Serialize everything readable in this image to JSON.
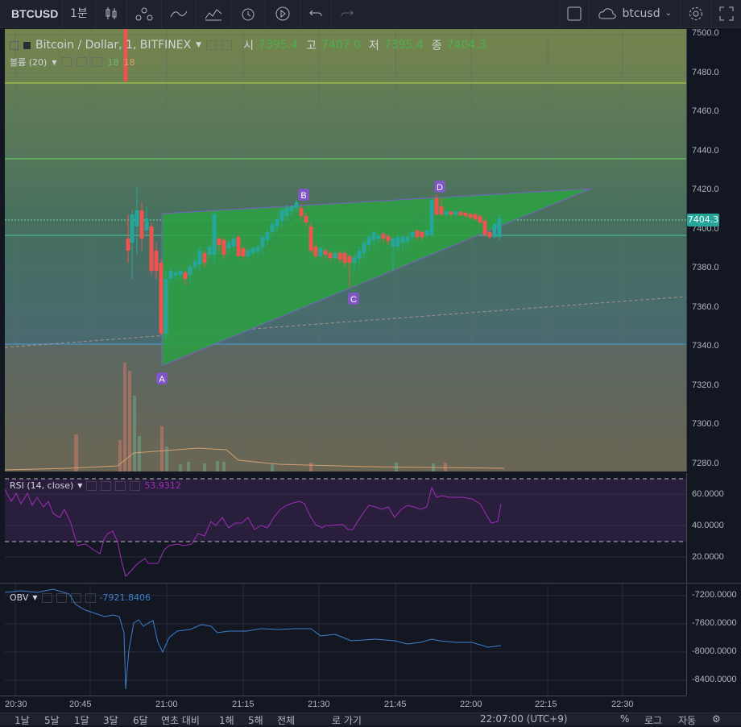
{
  "toolbar": {
    "symbol": "BTCUSD",
    "interval": "1분",
    "cloud_label": "btcusd"
  },
  "legend": {
    "pair": "Bitcoin / Dollar, 1, BITFINEX",
    "open_label": "시",
    "open": "7395.4",
    "high_label": "고",
    "high": "7407.0",
    "low_label": "저",
    "low": "7395.4",
    "close_label": "종",
    "close": "7404.3",
    "volume_title": "볼륨 (20)",
    "volume_val1": "18",
    "volume_val2": "18"
  },
  "price_axis": {
    "labels": [
      "7500.0",
      "7480.0",
      "7460.0",
      "7440.0",
      "7420.0",
      "7400.0",
      "7380.0",
      "7360.0",
      "7340.0",
      "7320.0",
      "7300.0",
      "7280.0"
    ],
    "current": "7404.3"
  },
  "rsi": {
    "title": "RSI (14, close)",
    "value": "53.9312",
    "labels": [
      "60.0000",
      "40.0000",
      "20.0000"
    ]
  },
  "obv": {
    "title": "OBV",
    "value": "-7921.8406",
    "labels": [
      "-7200.0000",
      "-7600.0000",
      "-8000.0000",
      "-8400.0000"
    ]
  },
  "time_axis": [
    "20:30",
    "20:45",
    "21:00",
    "21:15",
    "21:30",
    "21:45",
    "22:00",
    "22:15",
    "22:30"
  ],
  "pattern_points": [
    "A",
    "B",
    "C",
    "D"
  ],
  "bottom": {
    "ranges": [
      "1날",
      "5날",
      "1달",
      "3달",
      "6달",
      "연초 대비",
      "1해",
      "5해",
      "전체"
    ],
    "goto": "로 가기",
    "clock": "22:07:00 (UTC+9)",
    "options": [
      "%",
      "로그",
      "자동"
    ]
  },
  "colors": {
    "up": "#26a69a",
    "down": "#ef5350",
    "pattern": "#2ca142",
    "accent": "#7e57c2"
  }
}
